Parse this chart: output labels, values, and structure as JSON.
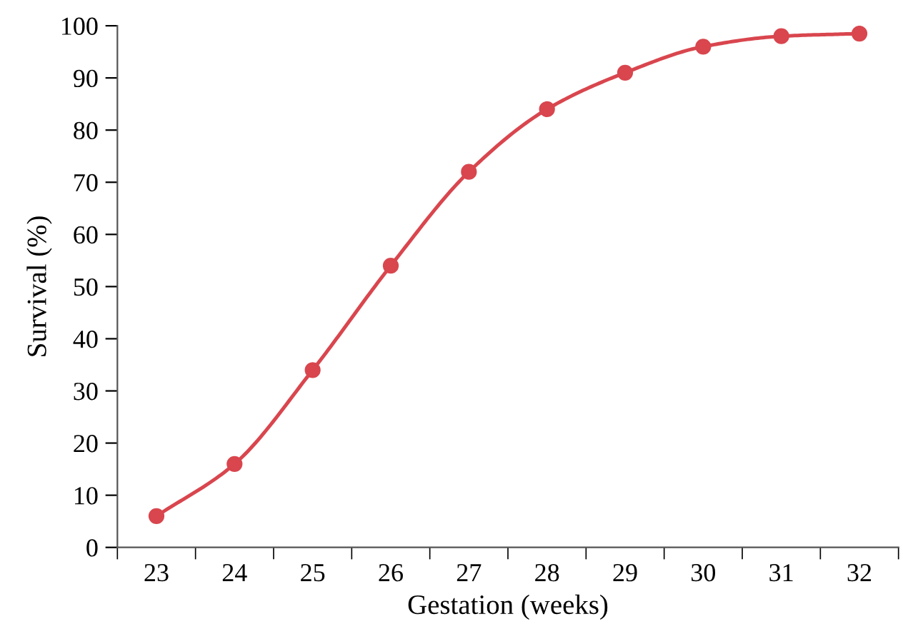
{
  "chart_data": {
    "type": "line",
    "xlabel": "Gestation (weeks)",
    "ylabel": "Survival (%)",
    "categories": [
      "23",
      "24",
      "25",
      "26",
      "27",
      "28",
      "29",
      "30",
      "31",
      "32"
    ],
    "series": [
      {
        "color": "#d9464e",
        "values": [
          6,
          16,
          34,
          54,
          72,
          84,
          91,
          96,
          98,
          98.5
        ]
      }
    ],
    "ylim": [
      0,
      100
    ],
    "yticks": [
      0,
      10,
      20,
      30,
      40,
      50,
      60,
      70,
      80,
      90,
      100
    ],
    "grid": false,
    "legend": false,
    "marker": "circle",
    "line_style": "solid"
  }
}
